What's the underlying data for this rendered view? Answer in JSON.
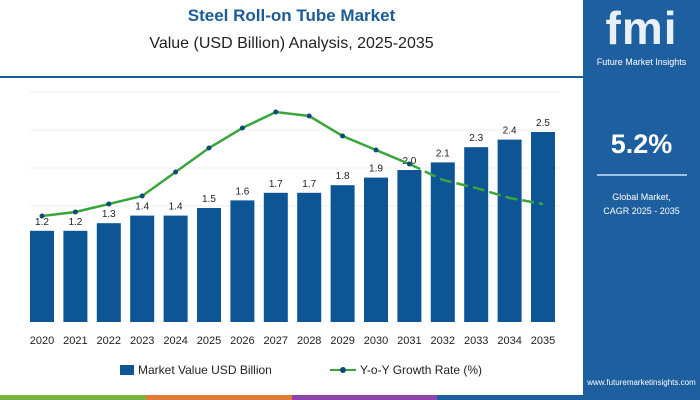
{
  "header": {
    "title": "Steel Roll-on Tube Market",
    "subtitle": "Value (USD Billion) Analysis, 2025-2035"
  },
  "side_panel": {
    "logo_text": "fmi",
    "brand": "Future Market Insights",
    "cagr": "5.2%",
    "desc_line1": "Global Market,",
    "desc_line2": "CAGR 2025 - 2035",
    "url": "www.futuremarketinsights.com"
  },
  "colors": {
    "bar": "#0d5594",
    "line": "#3aa53a",
    "marker": "#0d4a7a",
    "panel": "#1d5f9f",
    "title": "#1b5c98"
  },
  "chart_data": {
    "type": "bar+line",
    "categories": [
      "2020",
      "2021",
      "2022",
      "2023",
      "2024",
      "2025",
      "2026",
      "2027",
      "2028",
      "2029",
      "2030",
      "2031",
      "2032",
      "2033",
      "2034",
      "2035"
    ],
    "series": [
      {
        "name": "Market Value USD Billion",
        "type": "bar",
        "values": [
          1.2,
          1.2,
          1.3,
          1.4,
          1.4,
          1.5,
          1.6,
          1.7,
          1.7,
          1.8,
          1.9,
          2.0,
          2.1,
          2.3,
          2.4,
          2.5
        ],
        "data_labels": [
          "1.2",
          "1.2",
          "1.3",
          "1.4",
          "1.4",
          "1.5",
          "1.6",
          "1.7",
          "1.7",
          "1.8",
          "1.9",
          "2.0",
          "2.1",
          "2.3",
          "2.4",
          "2.5"
        ]
      },
      {
        "name": "Y-o-Y Growth Rate (%)",
        "type": "line",
        "values": [
          3.0,
          3.2,
          3.6,
          4.0,
          5.2,
          6.4,
          7.4,
          8.2,
          8.0,
          7.0,
          6.3,
          5.6,
          4.8,
          4.4,
          3.9,
          3.6
        ],
        "forecast_dashed_from": "2031"
      }
    ],
    "legend_position": "bottom",
    "grid": "horizontal"
  }
}
